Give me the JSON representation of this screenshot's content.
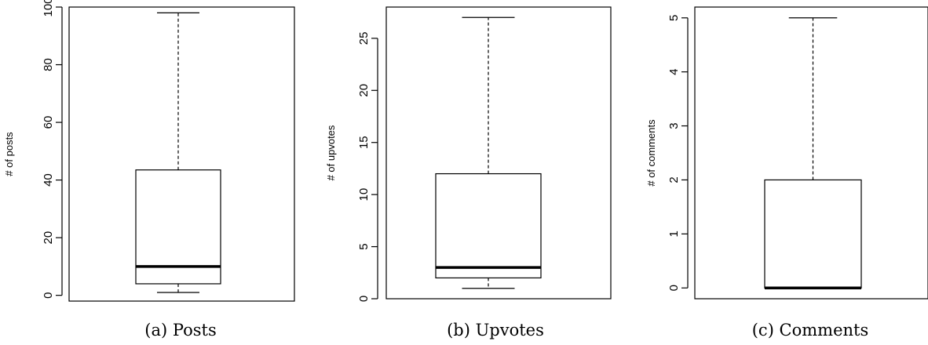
{
  "chart_data": [
    {
      "type": "box",
      "caption": "(a) Posts",
      "ylabel": "# of posts",
      "ylim": [
        -2,
        100
      ],
      "yticks": [
        0,
        20,
        40,
        60,
        80,
        100
      ],
      "ytick_labels": [
        "0",
        "20",
        "40",
        "60",
        "80",
        "100"
      ],
      "box": {
        "min": 1,
        "q1": 4,
        "median": 10,
        "q3": 43.5,
        "max": 98
      }
    },
    {
      "type": "box",
      "caption": "(b) Upvotes",
      "ylabel": "# of upvotes",
      "ylim": [
        0,
        28
      ],
      "yticks": [
        0,
        5,
        10,
        15,
        20,
        25
      ],
      "ytick_labels": [
        "0",
        "5",
        "10",
        "15",
        "20",
        "25"
      ],
      "box": {
        "min": 1,
        "q1": 2,
        "median": 3,
        "q3": 12,
        "max": 27
      }
    },
    {
      "type": "box",
      "caption": "(c) Comments",
      "ylabel": "# of comments",
      "ylim": [
        -0.2,
        5.2
      ],
      "yticks": [
        0,
        1,
        2,
        3,
        4,
        5
      ],
      "ytick_labels": [
        "0",
        "1",
        "2",
        "3",
        "4",
        "5"
      ],
      "box": {
        "min": 0,
        "q1": 0,
        "median": 0,
        "q3": 2,
        "max": 5
      }
    }
  ]
}
